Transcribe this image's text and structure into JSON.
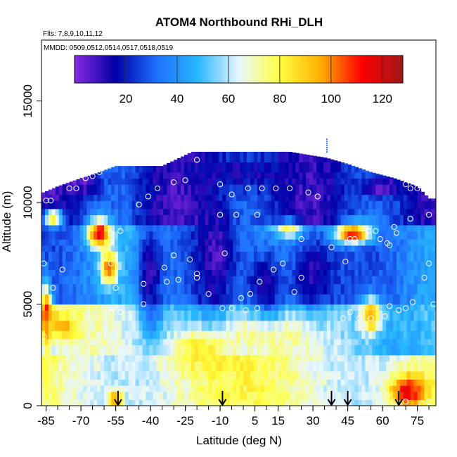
{
  "chart_data": {
    "type": "heatmap",
    "title": "ATOM4 Northbound RHi_DLH",
    "annotations": [
      "Flts: 7,8,9,10,11,12",
      "MMDD: 0509,0512,0514,0517,0518,0519"
    ],
    "xlabel": "Latitude (deg N)",
    "ylabel": "Altitude (m)",
    "xlim": [
      -87,
      83
    ],
    "ylim": [
      0,
      18000
    ],
    "x_ticks": [
      -85,
      -70,
      -55,
      -40,
      -25,
      -10,
      5,
      15,
      30,
      45,
      60,
      75
    ],
    "y_ticks": [
      0,
      5000,
      10000,
      15000
    ],
    "colorbar": {
      "range": [
        0,
        128
      ],
      "ticks": [
        20,
        40,
        60,
        80,
        100,
        120
      ],
      "colors": [
        "#8a2be2",
        "#0000a8",
        "#1f6fff",
        "#27b7ff",
        "#e8f6ff",
        "#ffff40",
        "#ffae00",
        "#ff0000",
        "#a01818"
      ]
    },
    "column_top_altitude": [
      {
        "lat": -86,
        "top": 10500
      },
      {
        "lat": -80,
        "top": 10800
      },
      {
        "lat": -75,
        "top": 11000
      },
      {
        "lat": -70,
        "top": 11200
      },
      {
        "lat": -62,
        "top": 11500
      },
      {
        "lat": -55,
        "top": 11800
      },
      {
        "lat": -45,
        "top": 11800
      },
      {
        "lat": -35,
        "top": 11800
      },
      {
        "lat": -22,
        "top": 12500
      },
      {
        "lat": 0,
        "top": 12500
      },
      {
        "lat": 20,
        "top": 12500
      },
      {
        "lat": 36,
        "top": 12200
      },
      {
        "lat": 45,
        "top": 11900
      },
      {
        "lat": 55,
        "top": 11500
      },
      {
        "lat": 65,
        "top": 11200
      },
      {
        "lat": 75,
        "top": 10800
      },
      {
        "lat": 80,
        "top": 10200
      }
    ],
    "field_blobs": [
      {
        "lat": -62,
        "alt": 8500,
        "rhi": 118,
        "lat_width": 5,
        "alt_width": 700
      },
      {
        "lat": -58,
        "alt": 6800,
        "rhi": 108,
        "lat_width": 3.5,
        "alt_width": 800
      },
      {
        "lat": -85,
        "alt": 4500,
        "rhi": 112,
        "lat_width": 2.5,
        "alt_width": 1500
      },
      {
        "lat": -78,
        "alt": 4000,
        "rhi": 95,
        "lat_width": 7,
        "alt_width": 700
      },
      {
        "lat": 47,
        "alt": 8500,
        "rhi": 115,
        "lat_width": 8,
        "alt_width": 500
      },
      {
        "lat": 55,
        "alt": 4500,
        "rhi": 98,
        "lat_width": 4,
        "alt_width": 900
      },
      {
        "lat": 71,
        "alt": 700,
        "rhi": 115,
        "lat_width": 8,
        "alt_width": 900
      },
      {
        "lat": -55,
        "alt": 300,
        "rhi": 105,
        "lat_width": 3,
        "alt_width": 400
      },
      {
        "lat": -18,
        "alt": 2800,
        "rhi": 85,
        "lat_width": 16,
        "alt_width": 1200
      },
      {
        "lat": 10,
        "alt": 3800,
        "rhi": 88,
        "lat_width": 14,
        "alt_width": 1000
      },
      {
        "lat": -82,
        "alt": 9300,
        "rhi": 92,
        "lat_width": 4,
        "alt_width": 400
      },
      {
        "lat": 20,
        "alt": 8700,
        "rhi": 90,
        "lat_width": 6,
        "alt_width": 400
      },
      {
        "lat": -40,
        "alt": 6500,
        "rhi": 10,
        "lat_width": 5,
        "alt_width": 2500
      },
      {
        "lat": -12,
        "alt": 7500,
        "rhi": 8,
        "lat_width": 8,
        "alt_width": 2500
      },
      {
        "lat": 10,
        "alt": 6000,
        "rhi": 15,
        "lat_width": 10,
        "alt_width": 2000
      },
      {
        "lat": 30,
        "alt": 6500,
        "rhi": 12,
        "lat_width": 10,
        "alt_width": 2000
      },
      {
        "lat": -70,
        "alt": 11000,
        "rhi": 5,
        "lat_width": 8,
        "alt_width": 600
      },
      {
        "lat": 60,
        "alt": 10800,
        "rhi": 4,
        "lat_width": 10,
        "alt_width": 500
      },
      {
        "lat": 0,
        "alt": 11500,
        "rhi": 14,
        "lat_width": 30,
        "alt_width": 900
      }
    ],
    "sample_points": [
      {
        "lat": -85,
        "alt": 10100
      },
      {
        "lat": -83,
        "alt": 10100
      },
      {
        "lat": -75,
        "alt": 10700
      },
      {
        "lat": -72,
        "alt": 10700
      },
      {
        "lat": -68,
        "alt": 11200
      },
      {
        "lat": -65,
        "alt": 11300
      },
      {
        "lat": -62,
        "alt": 11500
      },
      {
        "lat": -37,
        "alt": 10700
      },
      {
        "lat": -30,
        "alt": 11000
      },
      {
        "lat": -25,
        "alt": 11100
      },
      {
        "lat": -45,
        "alt": 9900
      },
      {
        "lat": -41,
        "alt": 10300
      },
      {
        "lat": -20,
        "alt": 12100
      },
      {
        "lat": -5,
        "alt": 10400
      },
      {
        "lat": -10,
        "alt": 10900
      },
      {
        "lat": 2,
        "alt": 10700
      },
      {
        "lat": 8,
        "alt": 10700
      },
      {
        "lat": 14,
        "alt": 10700
      },
      {
        "lat": 20,
        "alt": 10700
      },
      {
        "lat": 28,
        "alt": 10500
      },
      {
        "lat": 32,
        "alt": 10300
      },
      {
        "lat": 70,
        "alt": 10900
      },
      {
        "lat": 72,
        "alt": 10700
      },
      {
        "lat": 75,
        "alt": 10700
      },
      {
        "lat": 74,
        "alt": 11000
      },
      {
        "lat": 80,
        "alt": 9400
      },
      {
        "lat": 72,
        "alt": 9200
      },
      {
        "lat": 65,
        "alt": 8800
      },
      {
        "lat": 66,
        "alt": 8500
      },
      {
        "lat": 57,
        "alt": 8600
      },
      {
        "lat": 59,
        "alt": 8200
      },
      {
        "lat": 62,
        "alt": 8000
      },
      {
        "lat": 54,
        "alt": 8600
      },
      {
        "lat": 48,
        "alt": 8200
      },
      {
        "lat": 46,
        "alt": 8200
      },
      {
        "lat": 38,
        "alt": 7800
      },
      {
        "lat": 44,
        "alt": 7100
      },
      {
        "lat": 63,
        "alt": 7900
      },
      {
        "lat": -57,
        "alt": 8500
      },
      {
        "lat": -53,
        "alt": 8600
      },
      {
        "lat": -45,
        "alt": 9900
      },
      {
        "lat": -10,
        "alt": 9400
      },
      {
        "lat": -3,
        "alt": 9400
      },
      {
        "lat": 6,
        "alt": 9400
      },
      {
        "lat": -8,
        "alt": 7500
      },
      {
        "lat": -23,
        "alt": 7200
      },
      {
        "lat": -34,
        "alt": 6800
      },
      {
        "lat": -30,
        "alt": 7400
      },
      {
        "lat": -86,
        "alt": 7000
      },
      {
        "lat": -78,
        "alt": 6700
      },
      {
        "lat": -82,
        "alt": 5800
      },
      {
        "lat": -57,
        "alt": 7000
      },
      {
        "lat": -33,
        "alt": 6100
      },
      {
        "lat": -28,
        "alt": 6200
      },
      {
        "lat": -43,
        "alt": 6000
      },
      {
        "lat": -20,
        "alt": 6500
      },
      {
        "lat": -20,
        "alt": 6300
      },
      {
        "lat": -15,
        "alt": 5500
      },
      {
        "lat": -55,
        "alt": 5800
      },
      {
        "lat": -43,
        "alt": 5000
      },
      {
        "lat": 3,
        "alt": 5500
      },
      {
        "lat": -1,
        "alt": 5300
      },
      {
        "lat": 7,
        "alt": 6100
      },
      {
        "lat": 13,
        "alt": 6700
      },
      {
        "lat": 17,
        "alt": 7000
      },
      {
        "lat": 25,
        "alt": 6300
      },
      {
        "lat": 22,
        "alt": 5600
      },
      {
        "lat": -5,
        "alt": 4800
      },
      {
        "lat": -9,
        "alt": 4800
      },
      {
        "lat": 1,
        "alt": 4700
      },
      {
        "lat": 6,
        "alt": 4800
      },
      {
        "lat": -53,
        "alt": 4600
      },
      {
        "lat": -57,
        "alt": 4600
      },
      {
        "lat": 43,
        "alt": 4300
      },
      {
        "lat": 46,
        "alt": 4600
      },
      {
        "lat": 50,
        "alt": 4300
      },
      {
        "lat": 55,
        "alt": 4300
      },
      {
        "lat": 63,
        "alt": 4900
      },
      {
        "lat": 67,
        "alt": 4700
      },
      {
        "lat": 70,
        "alt": 4800
      },
      {
        "lat": 73,
        "alt": 5100
      },
      {
        "lat": 78,
        "alt": 6300
      },
      {
        "lat": 82,
        "alt": 5000
      },
      {
        "lat": 61,
        "alt": 4400
      },
      {
        "lat": 80,
        "alt": 7000
      },
      {
        "lat": -86,
        "alt": 3400
      },
      {
        "lat": -76,
        "alt": 1400
      },
      {
        "lat": 62,
        "alt": 500
      },
      {
        "lat": 65,
        "alt": 200
      },
      {
        "lat": 67,
        "alt": 100
      },
      {
        "lat": 70,
        "alt": 200
      },
      {
        "lat": 77,
        "alt": 100
      },
      {
        "lat": 80,
        "alt": 200
      },
      {
        "lat": 25,
        "alt": 8200
      }
    ],
    "arrows_at_latitude": [
      -54,
      -9,
      38,
      45,
      67
    ],
    "tick_mark_at": {
      "lat": 36,
      "alt": 12800
    }
  }
}
